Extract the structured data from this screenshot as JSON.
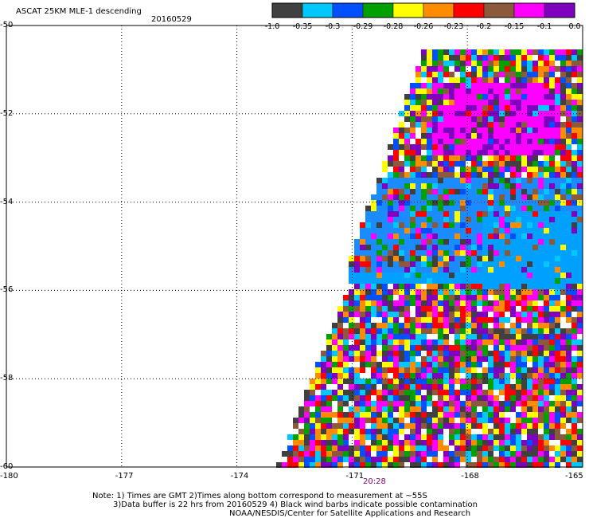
{
  "header": {
    "title": "ASCAT 25KM MLE-1 descending",
    "date": "20160529"
  },
  "colorbar": {
    "colors": [
      "#404040",
      "#00c8ff",
      "#0050ff",
      "#00a000",
      "#ffff00",
      "#ff8c00",
      "#ff0000",
      "#8b5a3c",
      "#ff00ff",
      "#8000c0"
    ],
    "labels": [
      "-1.0",
      "-0.35",
      "-0.3",
      "-0.29",
      "-0.28",
      "-0.26",
      "-0.23",
      "-0.2",
      "-0.15",
      "-0.1",
      "0.0"
    ]
  },
  "map": {
    "lon_range": [
      -180,
      -165
    ],
    "lat_range": [
      -60,
      -50
    ],
    "lon_ticks": [
      "-180",
      "-177",
      "-174",
      "-171",
      "-168",
      "-165"
    ],
    "lat_ticks": [
      "-50",
      "-52",
      "-54",
      "-56",
      "-58",
      "-60"
    ],
    "time_label": "20:28",
    "time_label_color": "#800080",
    "ocean_color": "#ffffff",
    "grid_style": "dotted"
  },
  "notes": {
    "line1": "Note: 1) Times are GMT 2)Times along bottom correspond to measurement at ~55S",
    "line2": "3)Data buffer is 22 hrs from 20160529 4) Black wind barbs indicate possible contamination",
    "line3": "NOAA/NESDIS/Center for Satellite Applications and Research"
  }
}
